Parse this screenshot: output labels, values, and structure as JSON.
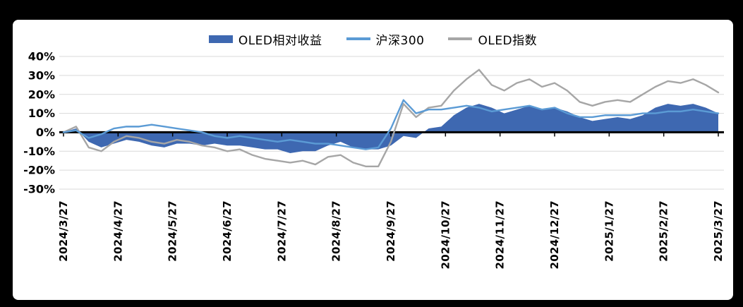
{
  "chart_data": {
    "type": "combo",
    "title": "",
    "ylim": [
      -30,
      40
    ],
    "grid": true,
    "legend_position": "top-center",
    "grid_color": "#d9d9d9",
    "axis_color": "#000000",
    "y_ticks": [
      {
        "label": "40%",
        "value": 40
      },
      {
        "label": "30%",
        "value": 30
      },
      {
        "label": "20%",
        "value": 20
      },
      {
        "label": "10%",
        "value": 10
      },
      {
        "label": "0%",
        "value": 0
      },
      {
        "label": "-10%",
        "value": -10
      },
      {
        "label": "-20%",
        "value": -20
      },
      {
        "label": "-30%",
        "value": -30
      }
    ],
    "categories": [
      "2024/3/27",
      "2024/4/27",
      "2024/5/27",
      "2024/6/27",
      "2024/7/27",
      "2024/8/27",
      "2024/9/27",
      "2024/10/27",
      "2024/11/27",
      "2024/12/27",
      "2025/1/27",
      "2025/2/27",
      "2025/3/27"
    ],
    "legend": [
      {
        "label": "OLED相对收益",
        "swatch": "area",
        "color": "#3E68B1"
      },
      {
        "label": "沪深300",
        "swatch": "line",
        "color": "#5B9BD5"
      },
      {
        "label": "OLED指数",
        "swatch": "line",
        "color": "#A6A6A6"
      }
    ],
    "series": [
      {
        "key": "oled-relative",
        "name": "OLED相对收益",
        "type": "area",
        "color": "#3E68B1",
        "unit": "%",
        "values": [
          0,
          2,
          -5,
          -8,
          -6,
          -4,
          -5,
          -7,
          -8,
          -6,
          -6,
          -7,
          -6,
          -7,
          -7,
          -8,
          -9,
          -9,
          -11,
          -10,
          -10,
          -7,
          -5,
          -8,
          -9,
          -9,
          -7,
          -2,
          -3,
          2,
          3,
          9,
          13,
          15,
          13,
          10,
          12,
          14,
          12,
          13,
          11,
          8,
          6,
          7,
          8,
          7,
          9,
          13,
          15,
          14,
          15,
          13,
          10
        ]
      },
      {
        "key": "csi300",
        "name": "沪深300",
        "type": "line",
        "color": "#5B9BD5",
        "unit": "%",
        "values": [
          0,
          1,
          -3,
          -1,
          2,
          3,
          3,
          4,
          3,
          2,
          1,
          0,
          -2,
          -3,
          -2,
          -3,
          -4,
          -5,
          -4,
          -5,
          -6,
          -6,
          -7,
          -8,
          -9,
          -8,
          2,
          17,
          10,
          12,
          12,
          13,
          14,
          13,
          11,
          12,
          13,
          14,
          12,
          13,
          10,
          8,
          8,
          9,
          9,
          9,
          10,
          10,
          11,
          11,
          12,
          11,
          10
        ]
      },
      {
        "key": "oled-index",
        "name": "OLED指数",
        "type": "line",
        "color": "#A6A6A6",
        "unit": "%",
        "values": [
          0,
          3,
          -8,
          -10,
          -5,
          -2,
          -3,
          -5,
          -6,
          -4,
          -5,
          -7,
          -8,
          -10,
          -9,
          -12,
          -14,
          -15,
          -16,
          -15,
          -17,
          -13,
          -12,
          -16,
          -18,
          -18,
          -5,
          15,
          8,
          13,
          14,
          22,
          28,
          33,
          25,
          22,
          26,
          28,
          24,
          26,
          22,
          16,
          14,
          16,
          17,
          16,
          20,
          24,
          27,
          26,
          28,
          25,
          21
        ]
      }
    ]
  }
}
